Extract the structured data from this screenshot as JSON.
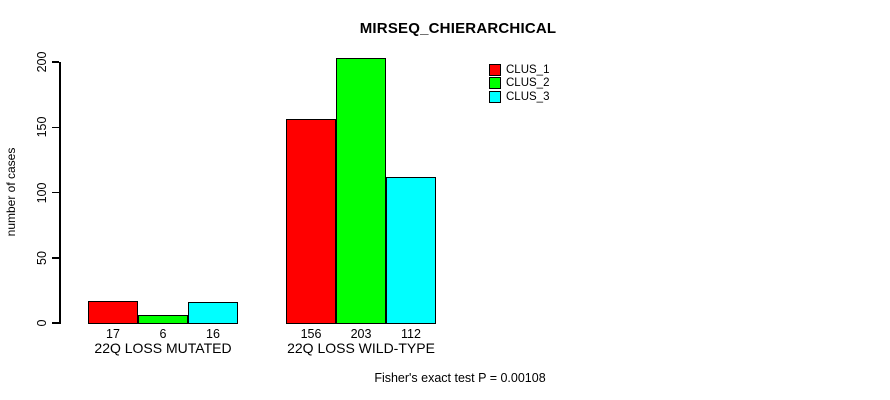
{
  "chart_data": {
    "type": "bar",
    "title": "MIRSEQ_CHIERARCHICAL",
    "xlabel": "",
    "ylabel": "number of cases",
    "categories": [
      "22Q LOSS MUTATED",
      "22Q LOSS WILD-TYPE"
    ],
    "series": [
      {
        "name": "CLUS_1",
        "color": "#FF0000",
        "values": [
          17,
          156
        ]
      },
      {
        "name": "CLUS_2",
        "color": "#00FF00",
        "values": [
          6,
          203
        ]
      },
      {
        "name": "CLUS_3",
        "color": "#00FFFF",
        "values": [
          16,
          112
        ]
      }
    ],
    "yticks": [
      0,
      50,
      100,
      150,
      200
    ],
    "ylim": [
      0,
      200
    ],
    "grid": false,
    "bar_value_labels_shown": true,
    "legend_position": "top-right",
    "annotation": "Fisher's exact test P = 0.00108"
  }
}
